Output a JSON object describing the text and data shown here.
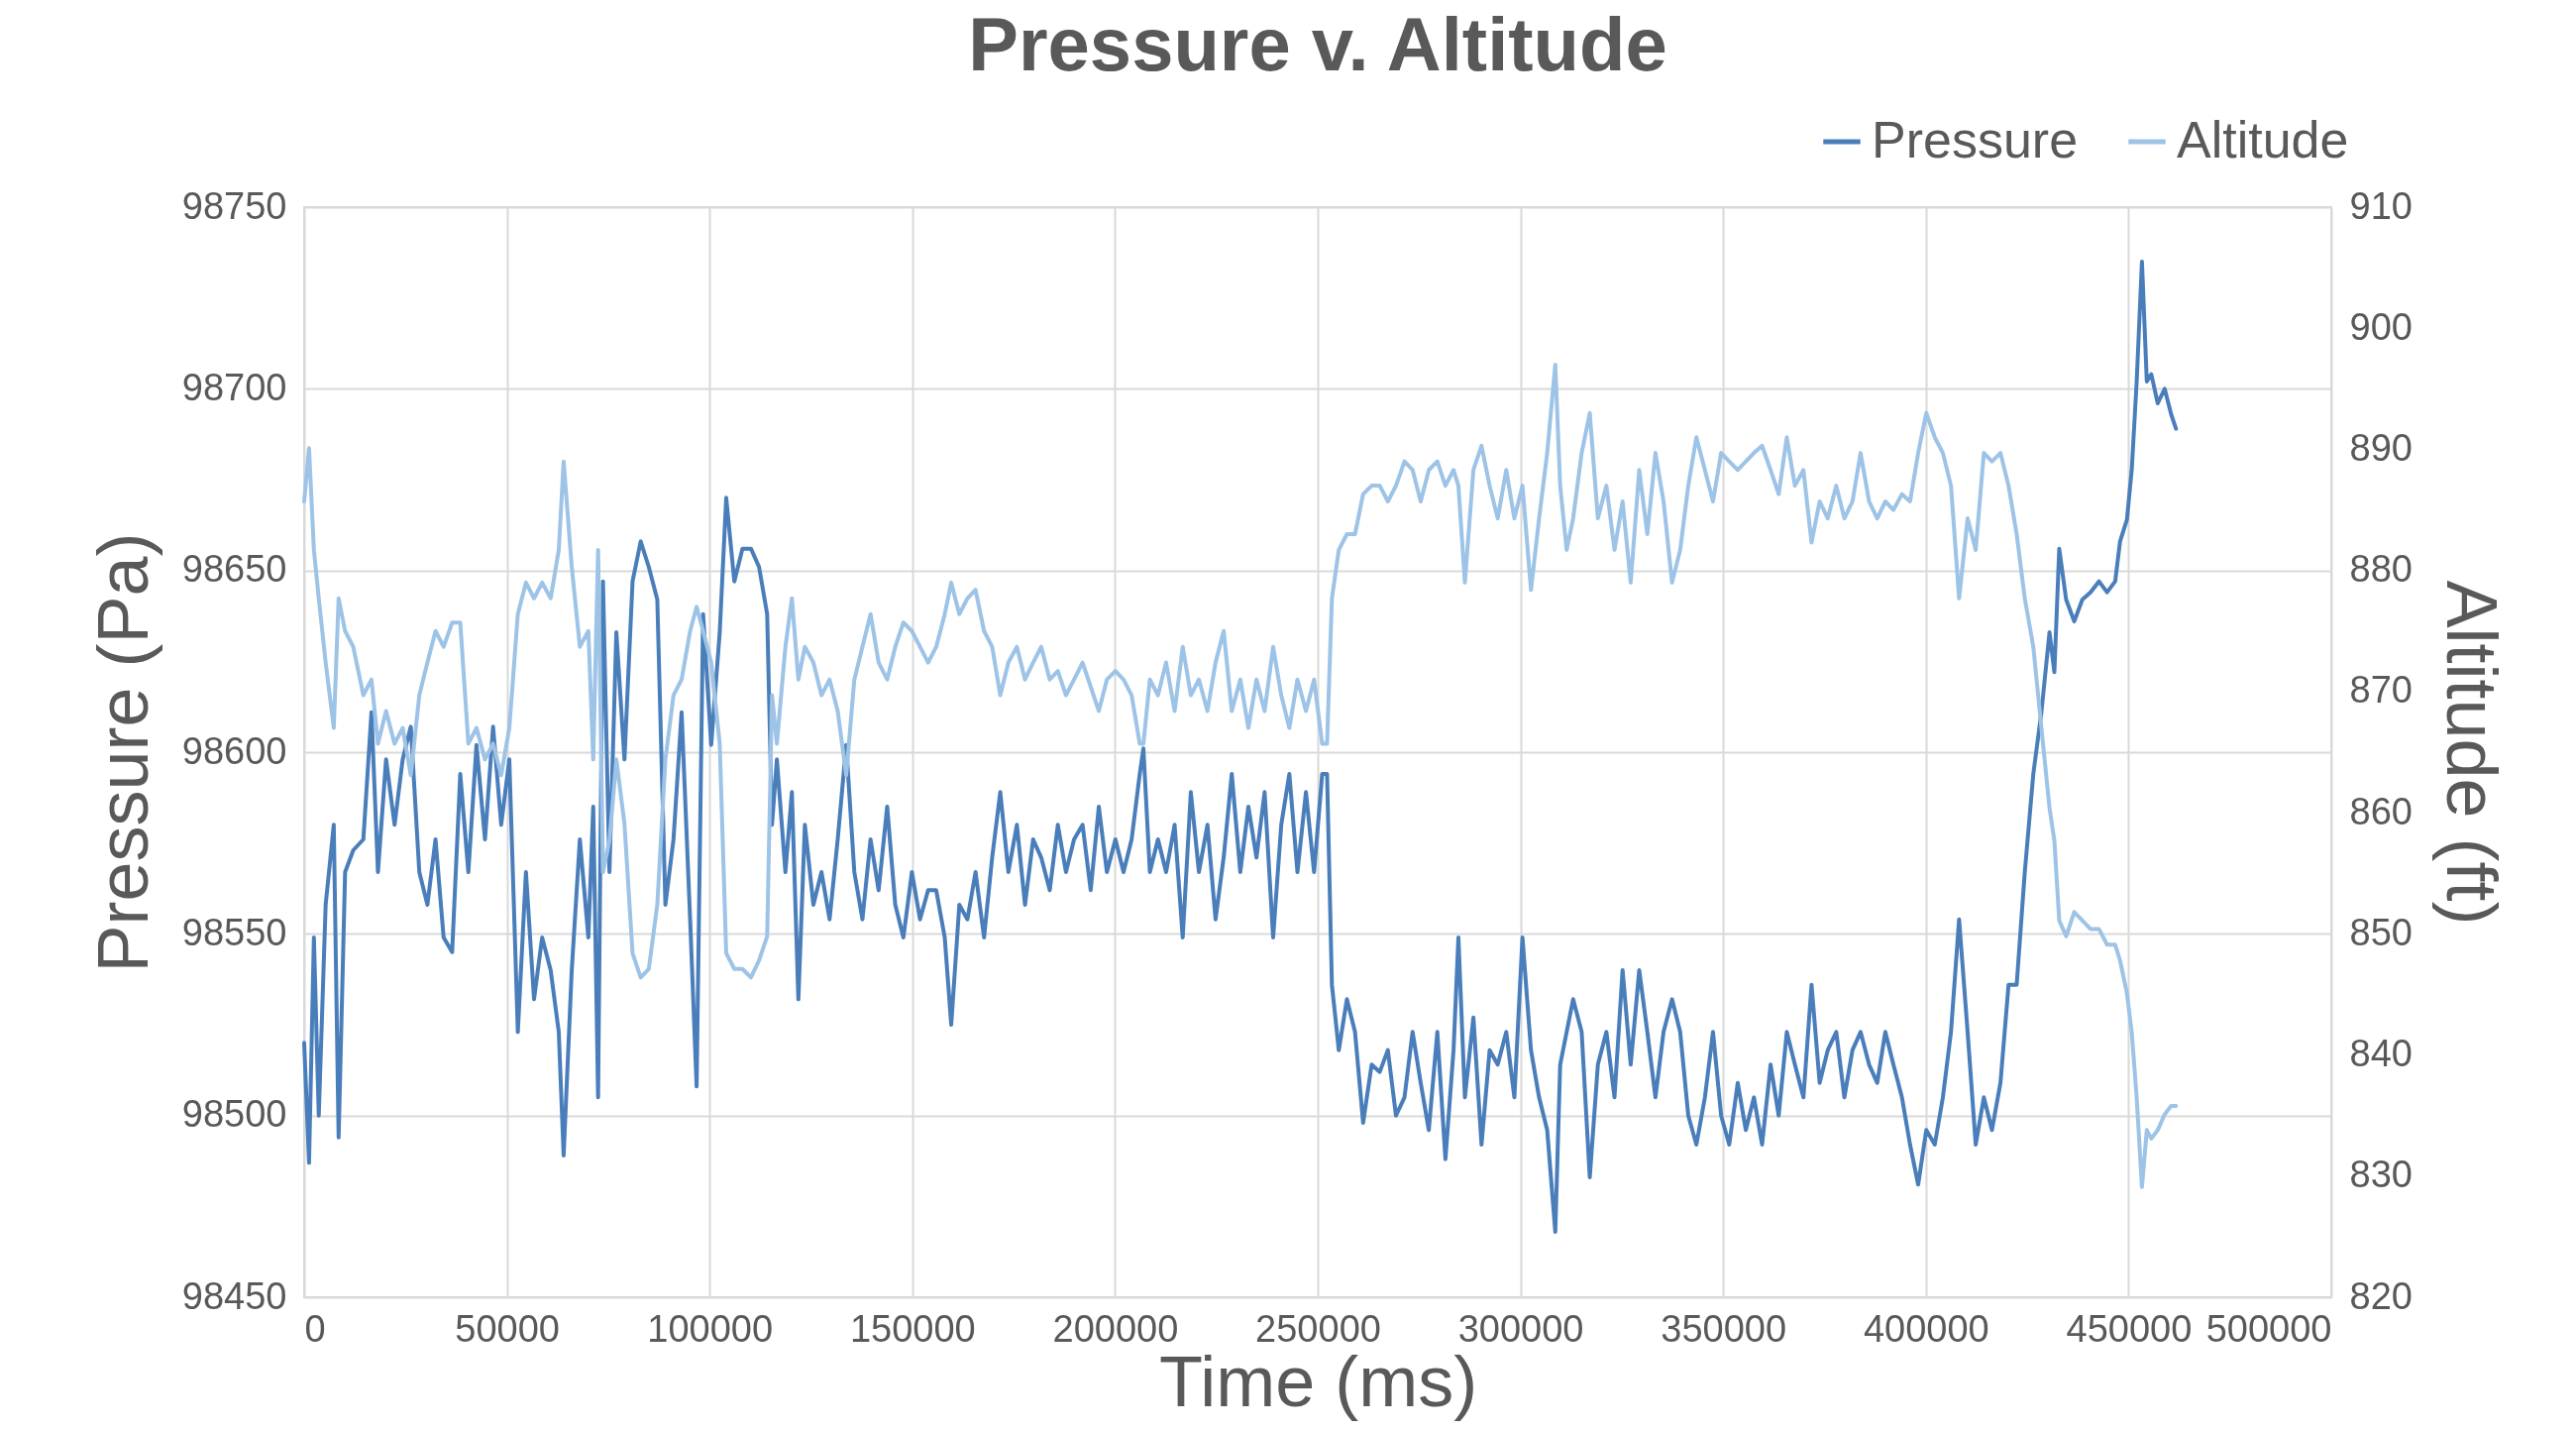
{
  "chart_data": {
    "type": "line",
    "title": "Pressure v. Altitude",
    "xlabel": "Time (ms)",
    "ylabel": "Pressure (Pa)",
    "y2label": "Altitude (ft)",
    "xlim": [
      0,
      500000
    ],
    "xticks": [
      0,
      50000,
      100000,
      150000,
      200000,
      250000,
      300000,
      350000,
      400000,
      450000,
      500000
    ],
    "ylim": [
      98450,
      98750
    ],
    "yticks": [
      98450,
      98500,
      98550,
      98600,
      98650,
      98700,
      98750
    ],
    "y2lim": [
      820,
      910
    ],
    "y2ticks": [
      820,
      830,
      840,
      850,
      860,
      870,
      880,
      890,
      900,
      910
    ],
    "grid": true,
    "legend": "top right",
    "x": [
      0,
      1200,
      2400,
      3600,
      5300,
      7300,
      8500,
      10100,
      12100,
      14600,
      16600,
      18200,
      20200,
      22300,
      24300,
      26300,
      28400,
      30400,
      32400,
      34400,
      36500,
      38500,
      40500,
      42500,
      44600,
      46600,
      48600,
      50600,
      52700,
      54700,
      56700,
      58700,
      60800,
      62800,
      64000,
      66000,
      68000,
      70100,
      71300,
      72500,
      73700,
      75300,
      77000,
      79000,
      81000,
      83000,
      85000,
      87100,
      89100,
      91100,
      93100,
      95200,
      96800,
      98400,
      100400,
      102500,
      104100,
      106100,
      108100,
      110200,
      112200,
      114200,
      115400,
      116600,
      118700,
      120300,
      121900,
      123500,
      125600,
      127600,
      129600,
      131600,
      133700,
      135700,
      137700,
      139700,
      141700,
      143800,
      145800,
      147800,
      149900,
      151900,
      153900,
      155900,
      158000,
      159600,
      161600,
      163600,
      165600,
      167700,
      169700,
      171700,
      173700,
      175800,
      177800,
      179800,
      181800,
      183900,
      185900,
      187900,
      189900,
      192000,
      194000,
      196000,
      198000,
      200100,
      202100,
      204100,
      206100,
      207000,
      208600,
      210600,
      212600,
      214700,
      216700,
      218700,
      220700,
      222800,
      224800,
      226800,
      228800,
      230900,
      232900,
      234900,
      236900,
      239000,
      241000,
      243000,
      245000,
      247100,
      249100,
      251100,
      252300,
      253500,
      255200,
      257200,
      259200,
      261200,
      263300,
      265300,
      267300,
      269300,
      271400,
      273400,
      275400,
      277400,
      279500,
      281500,
      283500,
      284700,
      286300,
      288400,
      290400,
      292400,
      294400,
      296500,
      298500,
      300500,
      302600,
      304600,
      306600,
      308600,
      309800,
      311400,
      313000,
      315100,
      317100,
      319100,
      321200,
      323200,
      325200,
      327200,
      329300,
      331300,
      333300,
      335300,
      337400,
      339400,
      341400,
      343400,
      345500,
      347500,
      349500,
      351500,
      353600,
      355600,
      357600,
      359600,
      361700,
      363700,
      365700,
      367700,
      369800,
      371800,
      373800,
      375800,
      377900,
      379900,
      381900,
      383900,
      386000,
      388000,
      390000,
      392000,
      394100,
      396100,
      398100,
      400100,
      402200,
      404200,
      406200,
      408200,
      410300,
      412300,
      414300,
      416300,
      418400,
      420400,
      422400,
      424400,
      426500,
      428500,
      430500,
      431700,
      432900,
      434600,
      436600,
      438600,
      440600,
      442700,
      444700,
      446700,
      447900,
      449600,
      450800,
      452000,
      453300,
      454500,
      455600,
      457200,
      458900,
      460500,
      461700
    ],
    "series": [
      {
        "name": "Pressure",
        "color": "#4a7ebb",
        "values": [
          98520,
          98487,
          98549,
          98500,
          98558,
          98580,
          98494,
          98567,
          98573,
          98576,
          98611,
          98567,
          98598,
          98580,
          98598,
          98607,
          98567,
          98558,
          98576,
          98549,
          98545,
          98594,
          98567,
          98602,
          98576,
          98607,
          98580,
          98598,
          98523,
          98567,
          98532,
          98549,
          98540,
          98523,
          98489,
          98540,
          98576,
          98549,
          98585,
          98505,
          98647,
          98567,
          98633,
          98598,
          98647,
          98658,
          98651,
          98642,
          98558,
          98576,
          98611,
          98554,
          98508,
          98638,
          98602,
          98633,
          98670,
          98647,
          98656,
          98656,
          98651,
          98638,
          98580,
          98598,
          98567,
          98589,
          98532,
          98580,
          98558,
          98567,
          98554,
          98576,
          98602,
          98567,
          98554,
          98576,
          98562,
          98585,
          98558,
          98549,
          98567,
          98554,
          98562,
          98562,
          98549,
          98525,
          98558,
          98554,
          98567,
          98549,
          98571,
          98589,
          98567,
          98580,
          98558,
          98576,
          98571,
          98562,
          98580,
          98567,
          98576,
          98580,
          98562,
          98585,
          98567,
          98576,
          98567,
          98576,
          98594,
          98601,
          98567,
          98576,
          98567,
          98580,
          98549,
          98589,
          98567,
          98580,
          98554,
          98571,
          98594,
          98567,
          98585,
          98571,
          98589,
          98549,
          98580,
          98594,
          98567,
          98589,
          98567,
          98594,
          98594,
          98536,
          98518,
          98532,
          98523,
          98498,
          98514,
          98512,
          98518,
          98500,
          98505,
          98523,
          98509,
          98496,
          98523,
          98488,
          98518,
          98549,
          98505,
          98527,
          98492,
          98518,
          98514,
          98523,
          98505,
          98549,
          98518,
          98505,
          98496,
          98468,
          98514,
          98523,
          98532,
          98523,
          98483,
          98514,
          98523,
          98505,
          98540,
          98514,
          98540,
          98523,
          98505,
          98523,
          98532,
          98523,
          98500,
          98492,
          98505,
          98523,
          98500,
          98492,
          98509,
          98496,
          98505,
          98492,
          98514,
          98500,
          98523,
          98514,
          98505,
          98536,
          98509,
          98518,
          98523,
          98505,
          98518,
          98523,
          98514,
          98509,
          98523,
          98514,
          98505,
          98492,
          98481,
          98496,
          98492,
          98505,
          98523,
          98554,
          98523,
          98492,
          98505,
          98496,
          98509,
          98536,
          98536,
          98567,
          98594,
          98611,
          98633,
          98622,
          98656,
          98642,
          98636,
          98642,
          98644,
          98647,
          98644,
          98647,
          98658,
          98664,
          98678,
          98702,
          98735,
          98702,
          98704,
          98696,
          98700,
          98693,
          98689
        ]
      },
      {
        "name": "Altitude",
        "color": "#9dc3e6",
        "axis": "y2",
        "values": [
          885.7,
          890.1,
          881.7,
          877.7,
          872.4,
          867.0,
          877.7,
          875.0,
          873.7,
          869.7,
          871.0,
          865.7,
          868.4,
          865.7,
          867.0,
          863.1,
          869.7,
          872.4,
          875.0,
          873.7,
          875.7,
          875.7,
          865.7,
          867.0,
          864.4,
          865.7,
          863.1,
          867.0,
          876.4,
          879.0,
          877.7,
          879.0,
          877.7,
          881.7,
          889.0,
          880.3,
          873.7,
          875.0,
          864.4,
          881.7,
          855.1,
          857.7,
          864.4,
          859.1,
          848.4,
          846.4,
          847.1,
          852.4,
          864.4,
          869.7,
          871.0,
          875.0,
          877.0,
          875.0,
          872.4,
          865.7,
          848.4,
          847.1,
          847.1,
          846.4,
          847.8,
          849.8,
          869.7,
          865.7,
          873.7,
          877.7,
          871.0,
          873.7,
          872.4,
          869.7,
          871.0,
          868.4,
          863.1,
          871.0,
          873.7,
          876.4,
          872.4,
          871.0,
          873.7,
          875.7,
          875.0,
          873.7,
          872.4,
          873.7,
          876.4,
          879.0,
          876.4,
          877.7,
          878.4,
          875.0,
          873.7,
          869.7,
          872.4,
          873.7,
          871.0,
          872.4,
          873.7,
          871.0,
          871.7,
          869.7,
          871.0,
          872.4,
          870.4,
          868.4,
          871.0,
          871.7,
          871.0,
          869.7,
          865.7,
          865.7,
          871.0,
          869.7,
          872.4,
          868.4,
          873.7,
          869.7,
          871.0,
          868.4,
          872.4,
          875.0,
          868.4,
          871.0,
          867.0,
          871.0,
          868.4,
          873.7,
          869.7,
          867.0,
          871.0,
          868.4,
          871.0,
          865.7,
          865.7,
          877.7,
          881.7,
          883.0,
          883.0,
          886.3,
          887.0,
          887.0,
          885.7,
          887.0,
          889.0,
          888.3,
          885.7,
          888.3,
          889.0,
          887.0,
          888.3,
          887.0,
          879.0,
          888.3,
          890.3,
          887.0,
          884.3,
          888.3,
          884.3,
          887.0,
          878.4,
          884.3,
          889.7,
          897.0,
          887.0,
          881.7,
          884.3,
          889.7,
          893.0,
          884.3,
          887.0,
          881.7,
          885.7,
          879.0,
          888.3,
          883.0,
          889.7,
          885.7,
          879.0,
          881.7,
          887.0,
          891.0,
          888.3,
          885.7,
          889.7,
          889.0,
          888.3,
          889.0,
          889.7,
          890.3,
          888.3,
          886.3,
          891.0,
          887.0,
          888.3,
          882.3,
          885.7,
          884.3,
          887.0,
          884.3,
          885.7,
          889.7,
          885.7,
          884.3,
          885.7,
          885.0,
          886.3,
          885.7,
          889.7,
          893.0,
          891.0,
          889.7,
          887.0,
          877.7,
          884.3,
          881.7,
          889.7,
          889.0,
          889.7,
          887.0,
          883.0,
          877.7,
          873.7,
          867.0,
          860.4,
          857.7,
          851.1,
          849.8,
          851.8,
          851.1,
          850.4,
          850.4,
          849.1,
          849.1,
          847.8,
          845.1,
          841.8,
          836.5,
          829.1,
          833.8,
          833.1,
          833.8,
          835.1,
          835.8,
          835.8
        ]
      }
    ]
  }
}
